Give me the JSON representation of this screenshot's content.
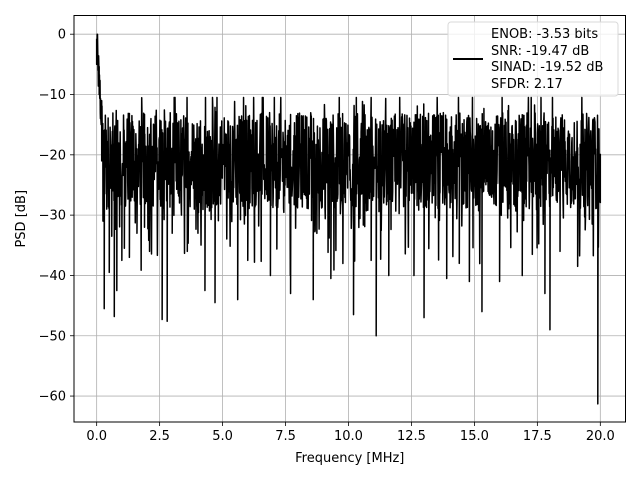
{
  "chart_data": {
    "type": "line",
    "xlabel": "Frequency [MHz]",
    "ylabel": "PSD [dB]",
    "xlim": [
      -0.9,
      21.0
    ],
    "ylim": [
      -64.3,
      3.1
    ],
    "xticks": [
      0.0,
      2.5,
      5.0,
      7.5,
      10.0,
      12.5,
      15.0,
      17.5,
      20.0
    ],
    "xtick_labels": [
      "0.0",
      "2.5",
      "5.0",
      "7.5",
      "10.0",
      "12.5",
      "15.0",
      "17.5",
      "20.0"
    ],
    "yticks": [
      0,
      -10,
      -20,
      -30,
      -40,
      -50,
      -60
    ],
    "ytick_labels": [
      "0",
      "−10",
      "−20",
      "−30",
      "−40",
      "−50",
      "−60"
    ],
    "grid": true,
    "legend_position": "top-right",
    "legend_lines": [
      "ENOB: -3.53 bits",
      "SNR: -19.47 dB",
      "SINAD: -19.52 dB",
      "SFDR: 2.17"
    ],
    "series": [
      {
        "color": "#000000",
        "x_range": [
          0.0,
          20.0
        ],
        "points": [
          [
            0.0,
            -5.0
          ],
          [
            0.02,
            0.0
          ],
          [
            0.05,
            -6.0
          ],
          [
            0.1,
            -10.0
          ],
          [
            0.15,
            -14.0
          ],
          [
            0.2,
            -21.0
          ],
          [
            0.25,
            -31.0
          ],
          [
            0.3,
            -45.5
          ],
          [
            0.4,
            -29.0
          ],
          [
            0.5,
            -39.5
          ],
          [
            0.6,
            -33.5
          ],
          [
            0.7,
            -46.8
          ],
          [
            0.8,
            -42.5
          ],
          [
            1.0,
            -37.5
          ],
          [
            1.1,
            -35.5
          ],
          [
            1.3,
            -37.0
          ],
          [
            1.6,
            -33.0
          ],
          [
            1.9,
            -32.0
          ],
          [
            2.1,
            -36.0
          ],
          [
            2.6,
            -47.3
          ],
          [
            2.8,
            -47.6
          ],
          [
            3.0,
            -33.0
          ],
          [
            3.6,
            -36.0
          ],
          [
            4.3,
            -42.5
          ],
          [
            4.7,
            -44.5
          ],
          [
            5.6,
            -44.0
          ],
          [
            6.0,
            -37.5
          ],
          [
            6.9,
            -40.0
          ],
          [
            7.7,
            -43.0
          ],
          [
            8.6,
            -44.0
          ],
          [
            9.3,
            -40.5
          ],
          [
            10.2,
            -46.5
          ],
          [
            10.9,
            -37.5
          ],
          [
            11.1,
            -50.0
          ],
          [
            11.6,
            -40.0
          ],
          [
            12.6,
            -40.0
          ],
          [
            13.0,
            -47.0
          ],
          [
            13.9,
            -40.5
          ],
          [
            14.4,
            -38.0
          ],
          [
            14.8,
            -41.0
          ],
          [
            15.3,
            -46.0
          ],
          [
            16.0,
            -41.0
          ],
          [
            16.9,
            -40.0
          ],
          [
            17.3,
            -36.5
          ],
          [
            17.8,
            -43.0
          ],
          [
            18.0,
            -49.0
          ],
          [
            18.4,
            -36.0
          ],
          [
            19.1,
            -38.5
          ],
          [
            19.9,
            -61.3
          ],
          [
            20.0,
            -28.0
          ]
        ]
      }
    ]
  }
}
